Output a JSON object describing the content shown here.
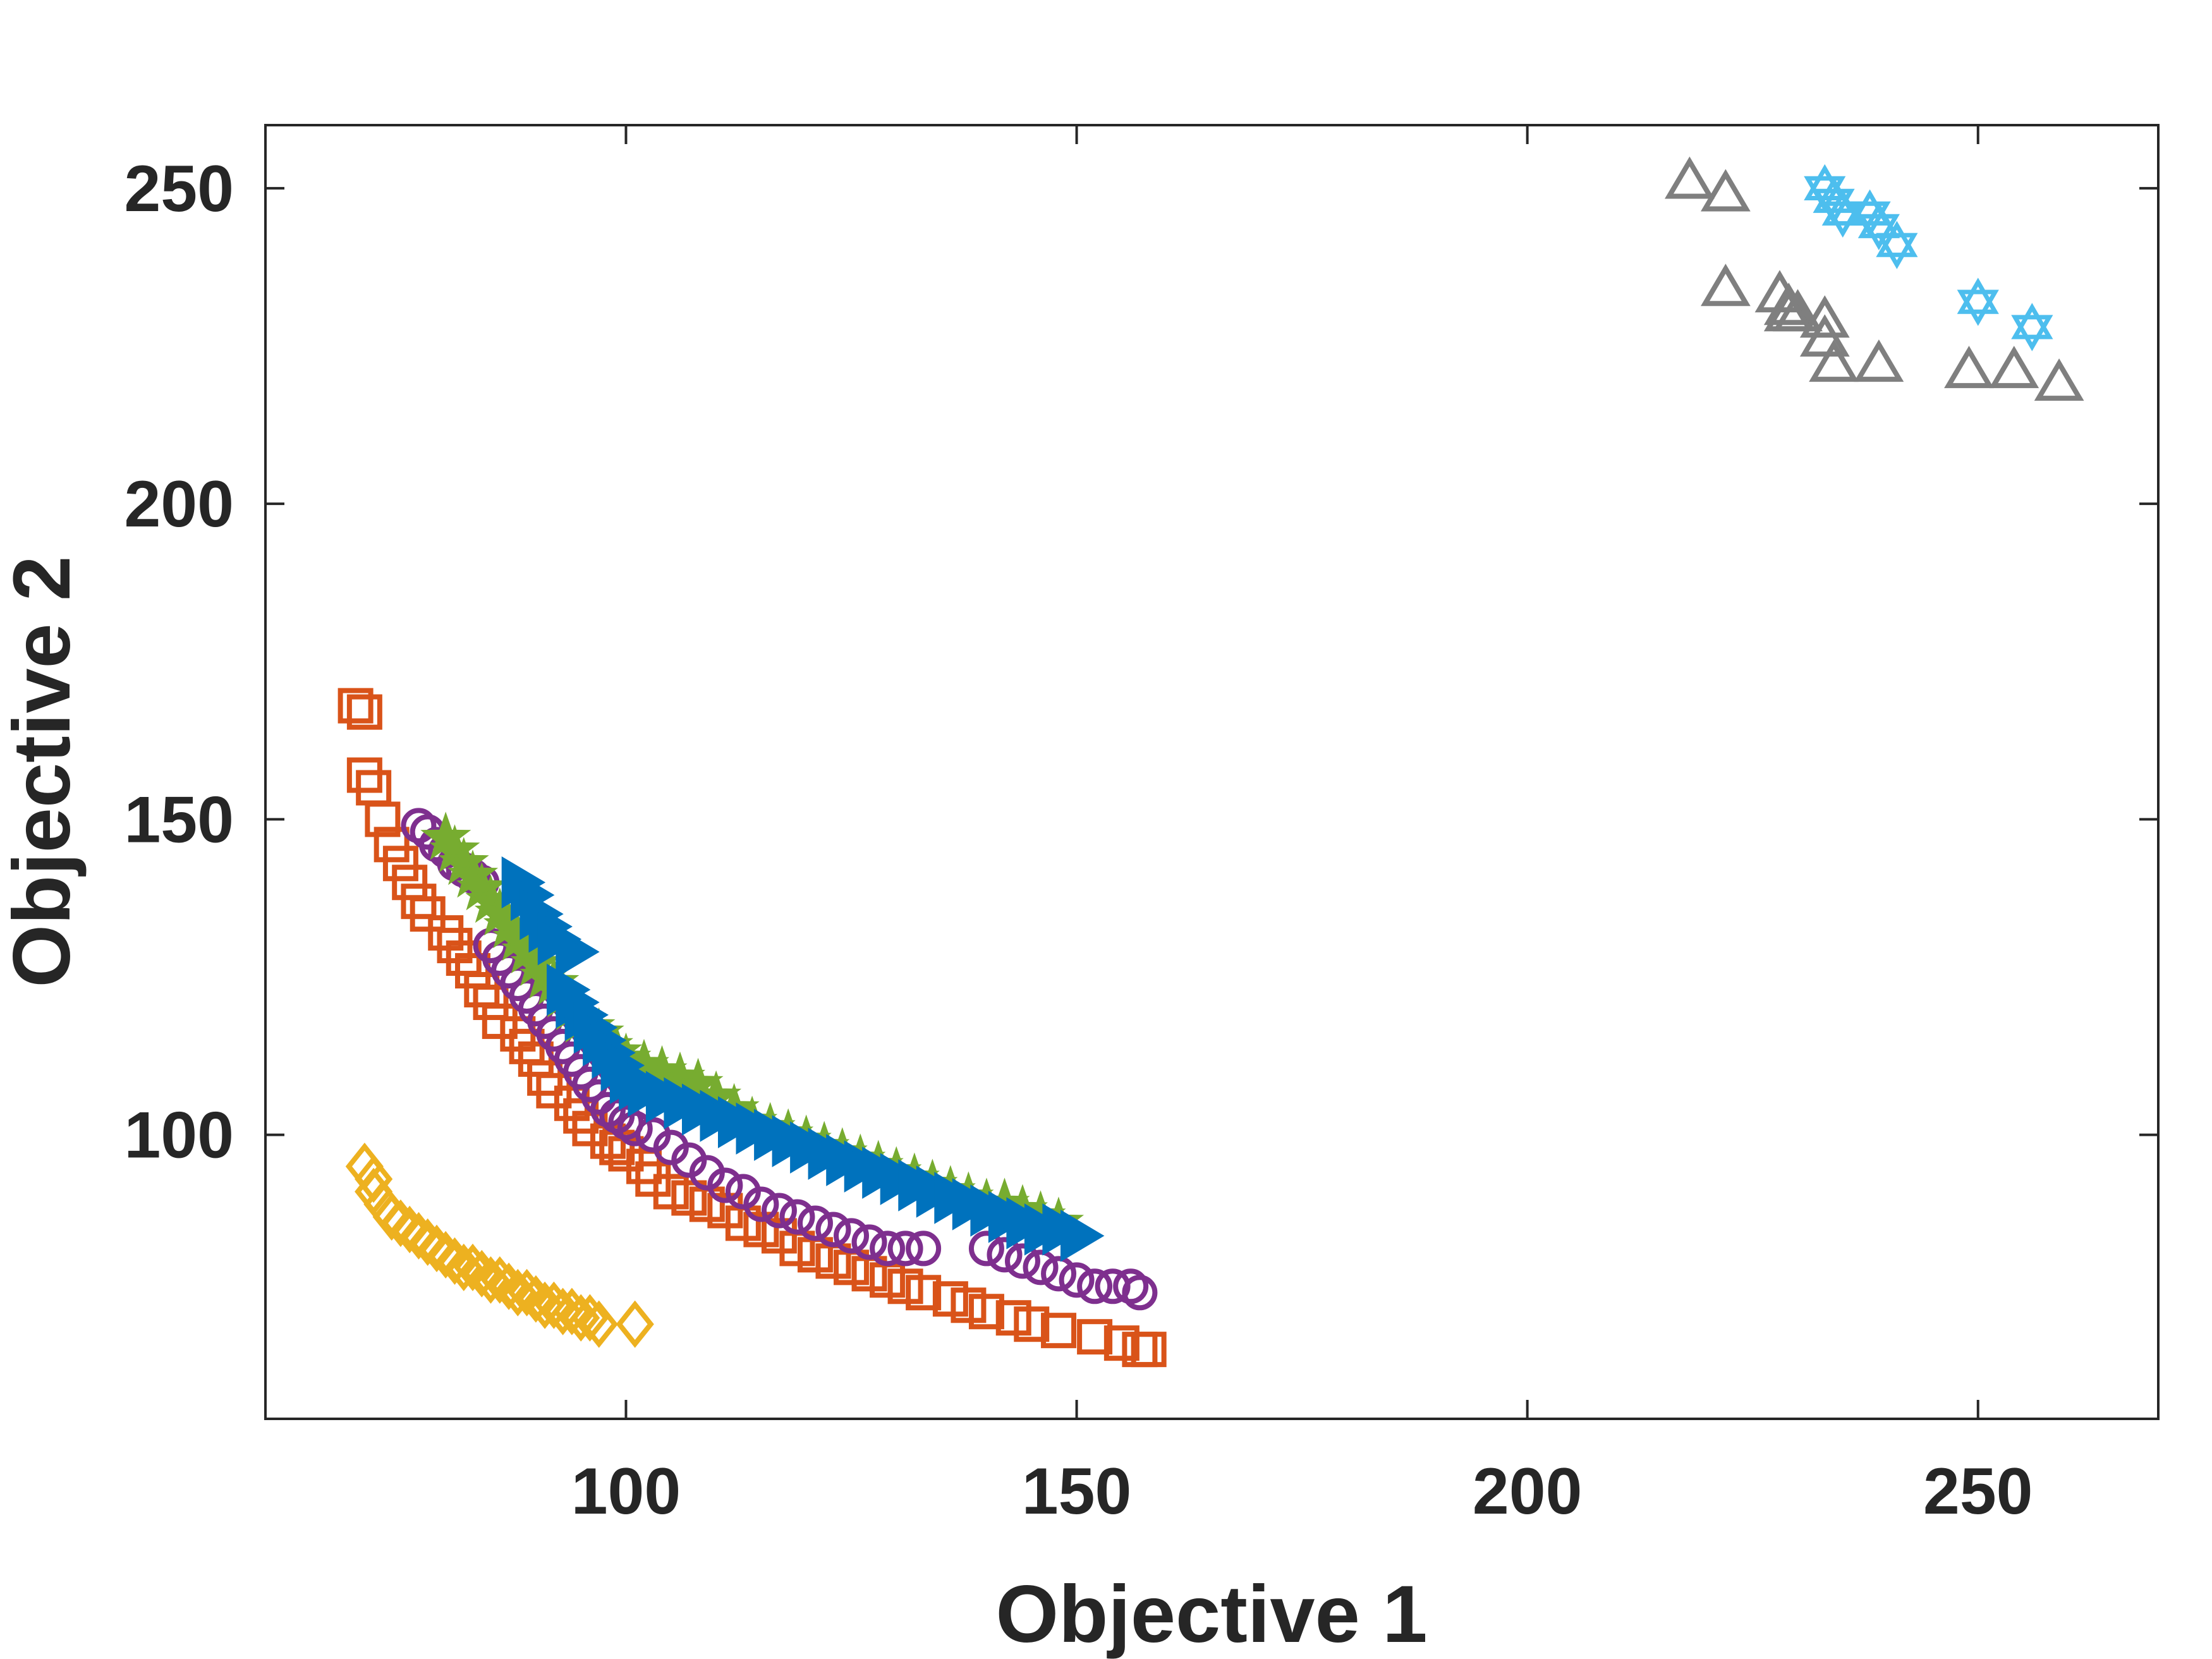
{
  "chart_data": {
    "type": "scatter",
    "title": "",
    "xlabel": "Objective 1",
    "ylabel": "Objective 2",
    "xlim": [
      60,
      270
    ],
    "ylim": [
      55,
      260
    ],
    "xticks": [
      100,
      150,
      200,
      250
    ],
    "yticks": [
      100,
      150,
      200,
      250
    ],
    "xtick_labels": [
      "100",
      "150",
      "200",
      "250"
    ],
    "ytick_labels": [
      "100",
      "150",
      "200",
      "250"
    ],
    "grid": false,
    "legend": null,
    "series": [
      {
        "name": "square-series",
        "marker": "square",
        "color": "#D95319",
        "filled": false,
        "points": [
          [
            70,
            168
          ],
          [
            71,
            167
          ],
          [
            71,
            157
          ],
          [
            72,
            155
          ],
          [
            73,
            150
          ],
          [
            74,
            146
          ],
          [
            75,
            143
          ],
          [
            76,
            140
          ],
          [
            77,
            137
          ],
          [
            78,
            135
          ],
          [
            80,
            132
          ],
          [
            81,
            130
          ],
          [
            82,
            128
          ],
          [
            83,
            126
          ],
          [
            84,
            123
          ],
          [
            85,
            121
          ],
          [
            86,
            118
          ],
          [
            88,
            116
          ],
          [
            89,
            114
          ],
          [
            90,
            112
          ],
          [
            91,
            109
          ],
          [
            92,
            107
          ],
          [
            94,
            105
          ],
          [
            95,
            103
          ],
          [
            96,
            101
          ],
          [
            98,
            99
          ],
          [
            99,
            98
          ],
          [
            100,
            97
          ],
          [
            102,
            95
          ],
          [
            103,
            93
          ],
          [
            105,
            91
          ],
          [
            107,
            90
          ],
          [
            109,
            89
          ],
          [
            111,
            88
          ],
          [
            113,
            86
          ],
          [
            115,
            85
          ],
          [
            117,
            84
          ],
          [
            119,
            82
          ],
          [
            121,
            81
          ],
          [
            123,
            80
          ],
          [
            125,
            79
          ],
          [
            127,
            78
          ],
          [
            129,
            77
          ],
          [
            131,
            76
          ],
          [
            133,
            75
          ],
          [
            136,
            74
          ],
          [
            138,
            73
          ],
          [
            140,
            72
          ],
          [
            143,
            71
          ],
          [
            145,
            70
          ],
          [
            148,
            69
          ],
          [
            152,
            68
          ],
          [
            155,
            67
          ],
          [
            157,
            66
          ],
          [
            158,
            66
          ]
        ]
      },
      {
        "name": "circle-series",
        "marker": "circle",
        "color": "#7E2F8E",
        "filled": false,
        "points": [
          [
            77,
            149
          ],
          [
            78,
            148
          ],
          [
            79,
            146
          ],
          [
            80,
            145
          ],
          [
            81,
            143
          ],
          [
            82,
            142
          ],
          [
            83,
            141
          ],
          [
            84,
            140
          ],
          [
            85,
            130
          ],
          [
            86,
            128
          ],
          [
            87,
            126
          ],
          [
            88,
            124
          ],
          [
            89,
            122
          ],
          [
            90,
            120
          ],
          [
            91,
            118
          ],
          [
            92,
            116
          ],
          [
            93,
            114
          ],
          [
            94,
            112
          ],
          [
            95,
            110
          ],
          [
            96,
            108
          ],
          [
            97,
            106
          ],
          [
            98,
            104
          ],
          [
            99,
            103
          ],
          [
            100,
            102
          ],
          [
            101,
            101
          ],
          [
            103,
            100
          ],
          [
            105,
            98
          ],
          [
            107,
            96
          ],
          [
            109,
            94
          ],
          [
            111,
            92
          ],
          [
            113,
            91
          ],
          [
            115,
            89
          ],
          [
            117,
            88
          ],
          [
            119,
            87
          ],
          [
            121,
            86
          ],
          [
            123,
            85
          ],
          [
            125,
            84
          ],
          [
            127,
            83
          ],
          [
            129,
            82
          ],
          [
            131,
            82
          ],
          [
            133,
            82
          ],
          [
            140,
            82
          ],
          [
            142,
            81
          ],
          [
            144,
            80
          ],
          [
            146,
            79
          ],
          [
            148,
            78
          ],
          [
            150,
            77
          ],
          [
            152,
            76
          ],
          [
            154,
            76
          ],
          [
            156,
            76
          ],
          [
            157,
            75
          ]
        ]
      },
      {
        "name": "star-series",
        "marker": "star",
        "color": "#77AC30",
        "filled": true,
        "points": [
          [
            80,
            147
          ],
          [
            81,
            145
          ],
          [
            82,
            143
          ],
          [
            83,
            141
          ],
          [
            84,
            139
          ],
          [
            85,
            137
          ],
          [
            86,
            135
          ],
          [
            87,
            133
          ],
          [
            88,
            131
          ],
          [
            89,
            129
          ],
          [
            90,
            127
          ],
          [
            91,
            125
          ],
          [
            92,
            124
          ],
          [
            93,
            122
          ],
          [
            94,
            120
          ],
          [
            95,
            118
          ],
          [
            96,
            117
          ],
          [
            97,
            116
          ],
          [
            98,
            114
          ],
          [
            99,
            113
          ],
          [
            100,
            112
          ],
          [
            102,
            111
          ],
          [
            104,
            110
          ],
          [
            106,
            109
          ],
          [
            108,
            108
          ],
          [
            110,
            106
          ],
          [
            112,
            104
          ],
          [
            114,
            102
          ],
          [
            116,
            101
          ],
          [
            118,
            100
          ],
          [
            120,
            99
          ],
          [
            122,
            98
          ],
          [
            124,
            97
          ],
          [
            126,
            96
          ],
          [
            128,
            95
          ],
          [
            130,
            94
          ],
          [
            132,
            93
          ],
          [
            134,
            92
          ],
          [
            136,
            91
          ],
          [
            138,
            90
          ],
          [
            140,
            89
          ],
          [
            142,
            89
          ],
          [
            144,
            88
          ],
          [
            146,
            87
          ],
          [
            148,
            86
          ]
        ]
      },
      {
        "name": "right-triangle-series",
        "marker": "triangle-right",
        "color": "#0072BD",
        "filled": true,
        "points": [
          [
            88,
            140
          ],
          [
            89,
            138
          ],
          [
            90,
            135
          ],
          [
            91,
            133
          ],
          [
            92,
            131
          ],
          [
            94,
            129
          ],
          [
            93,
            123
          ],
          [
            94,
            121
          ],
          [
            95,
            119
          ],
          [
            96,
            117
          ],
          [
            97,
            115
          ],
          [
            98,
            113
          ],
          [
            99,
            111
          ],
          [
            100,
            109
          ],
          [
            101,
            108
          ],
          [
            102,
            107
          ],
          [
            104,
            106
          ],
          [
            106,
            105
          ],
          [
            108,
            104
          ],
          [
            110,
            103
          ],
          [
            112,
            102
          ],
          [
            114,
            101
          ],
          [
            116,
            100
          ],
          [
            118,
            99
          ],
          [
            120,
            98
          ],
          [
            122,
            97
          ],
          [
            124,
            96
          ],
          [
            126,
            95
          ],
          [
            128,
            94
          ],
          [
            130,
            93
          ],
          [
            132,
            92
          ],
          [
            134,
            91
          ],
          [
            136,
            90
          ],
          [
            138,
            89
          ],
          [
            140,
            88
          ],
          [
            142,
            87
          ],
          [
            144,
            86
          ],
          [
            146,
            85
          ],
          [
            148,
            85
          ],
          [
            150,
            84
          ]
        ]
      },
      {
        "name": "diamond-series",
        "marker": "diamond",
        "color": "#EDB120",
        "filled": false,
        "points": [
          [
            71,
            95
          ],
          [
            72,
            93
          ],
          [
            72,
            91
          ],
          [
            73,
            89
          ],
          [
            74,
            87
          ],
          [
            75,
            86
          ],
          [
            76,
            85
          ],
          [
            77,
            84
          ],
          [
            78,
            83
          ],
          [
            79,
            82
          ],
          [
            80,
            81
          ],
          [
            81,
            80
          ],
          [
            82,
            79
          ],
          [
            83,
            79
          ],
          [
            84,
            78
          ],
          [
            85,
            77
          ],
          [
            86,
            77
          ],
          [
            87,
            76
          ],
          [
            88,
            75
          ],
          [
            89,
            75
          ],
          [
            90,
            74
          ],
          [
            91,
            73
          ],
          [
            92,
            73
          ],
          [
            93,
            72
          ],
          [
            94,
            72
          ],
          [
            95,
            71
          ],
          [
            96,
            71
          ],
          [
            97,
            70
          ],
          [
            101,
            70
          ]
        ]
      },
      {
        "name": "triangle-series",
        "marker": "triangle-up",
        "color": "#7F7F7F",
        "filled": false,
        "points": [
          [
            218,
            251
          ],
          [
            222,
            249
          ],
          [
            222,
            234
          ],
          [
            228,
            233
          ],
          [
            229,
            231
          ],
          [
            229,
            230
          ],
          [
            230,
            230
          ],
          [
            233,
            229
          ],
          [
            233,
            226
          ],
          [
            234,
            222
          ],
          [
            239,
            222
          ],
          [
            249,
            221
          ],
          [
            254,
            221
          ],
          [
            259,
            219
          ]
        ]
      },
      {
        "name": "hexagram-series",
        "marker": "hexagram",
        "color": "#4DBEEE",
        "filled": false,
        "points": [
          [
            233,
            250
          ],
          [
            234,
            248
          ],
          [
            235,
            246
          ],
          [
            238,
            246
          ],
          [
            239,
            244
          ],
          [
            241,
            241
          ],
          [
            250,
            232
          ],
          [
            256,
            228
          ]
        ]
      }
    ]
  }
}
